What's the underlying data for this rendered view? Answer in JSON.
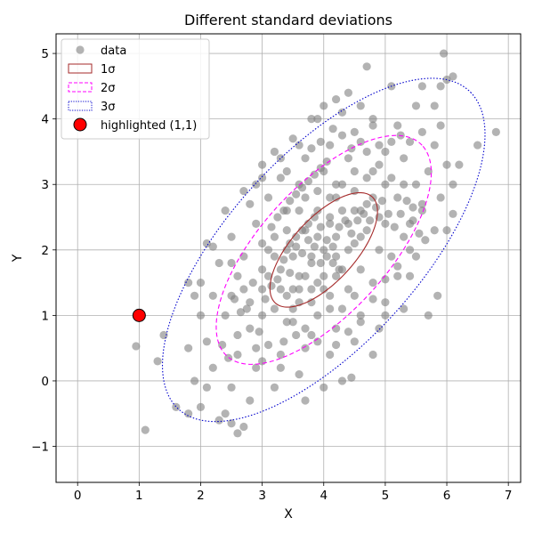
{
  "chart_data": {
    "type": "scatter",
    "title": "Different standard deviations",
    "xlabel": "X",
    "ylabel": "Y",
    "xlim": [
      -0.35,
      7.2
    ],
    "ylim": [
      -1.55,
      5.3
    ],
    "grid": true,
    "xticks": [
      "0",
      "1",
      "2",
      "3",
      "4",
      "5",
      "6",
      "7"
    ],
    "xtick_values": [
      0,
      1,
      2,
      3,
      4,
      5,
      6,
      7
    ],
    "yticks": [
      "−1",
      "0",
      "1",
      "2",
      "3",
      "4",
      "5"
    ],
    "ytick_values": [
      -1,
      0,
      1,
      2,
      3,
      4,
      5
    ],
    "legend_position": "top-left",
    "legend": [
      {
        "label": "data",
        "kind": "marker",
        "color": "#808080"
      },
      {
        "label": "1σ",
        "kind": "solid-rect",
        "color": "#a52a2a"
      },
      {
        "label": "2σ",
        "kind": "dashed-rect",
        "color": "#ff00ff"
      },
      {
        "label": "3σ",
        "kind": "dotted-rect",
        "color": "#0000cd"
      },
      {
        "label": "highlighted (1,1)",
        "kind": "highlight-marker",
        "color": "#ff0000"
      }
    ],
    "center": [
      4.0,
      2.0
    ],
    "angle_deg": 45,
    "semi_axes_1sigma": [
      1.13,
      0.5
    ],
    "ellipses": [
      {
        "label": "1σ",
        "n_std": 1,
        "color": "#a52a2a",
        "style": "solid"
      },
      {
        "label": "2σ",
        "n_std": 2,
        "color": "#ff00ff",
        "style": "dashed"
      },
      {
        "label": "3σ",
        "n_std": 3,
        "color": "#0000cd",
        "style": "dotted"
      }
    ],
    "highlight": {
      "label": "highlighted (1,1)",
      "x": 1,
      "y": 1,
      "color": "#ff0000"
    },
    "series": [
      {
        "name": "data",
        "color": "#808080",
        "points": [
          [
            3.2,
            1.1
          ],
          [
            3.4,
            1.3
          ],
          [
            3.0,
            1.4
          ],
          [
            3.6,
            1.6
          ],
          [
            3.8,
            1.8
          ],
          [
            4.0,
            2.0
          ],
          [
            4.2,
            2.2
          ],
          [
            4.4,
            2.4
          ],
          [
            4.6,
            2.6
          ],
          [
            4.8,
            2.8
          ],
          [
            3.5,
            1.9
          ],
          [
            3.9,
            1.5
          ],
          [
            4.1,
            2.5
          ],
          [
            4.5,
            2.1
          ],
          [
            3.7,
            2.3
          ],
          [
            4.3,
            1.7
          ],
          [
            3.3,
            1.7
          ],
          [
            4.7,
            2.3
          ],
          [
            3.6,
            2.6
          ],
          [
            4.4,
            1.4
          ],
          [
            3.1,
            2.0
          ],
          [
            4.9,
            2.0
          ],
          [
            3.9,
            2.9
          ],
          [
            4.1,
            1.1
          ],
          [
            3.4,
            2.3
          ],
          [
            4.6,
            1.7
          ],
          [
            3.8,
            1.2
          ],
          [
            4.2,
            2.8
          ],
          [
            3.5,
            1.4
          ],
          [
            4.5,
            2.6
          ],
          [
            2.8,
            1.2
          ],
          [
            3.0,
            1.7
          ],
          [
            3.2,
            2.2
          ],
          [
            3.4,
            2.6
          ],
          [
            3.6,
            3.0
          ],
          [
            4.0,
            3.2
          ],
          [
            4.4,
            3.4
          ],
          [
            4.8,
            3.2
          ],
          [
            5.0,
            3.0
          ],
          [
            5.2,
            2.8
          ],
          [
            4.6,
            0.9
          ],
          [
            4.2,
            0.8
          ],
          [
            3.8,
            0.7
          ],
          [
            3.4,
            0.9
          ],
          [
            3.0,
            1.0
          ],
          [
            2.8,
            0.8
          ],
          [
            5.0,
            1.2
          ],
          [
            5.2,
            1.6
          ],
          [
            5.4,
            2.0
          ],
          [
            5.0,
            2.4
          ],
          [
            2.6,
            1.6
          ],
          [
            2.7,
            1.9
          ],
          [
            2.9,
            2.4
          ],
          [
            3.1,
            2.8
          ],
          [
            3.3,
            3.1
          ],
          [
            3.7,
            3.4
          ],
          [
            4.1,
            3.6
          ],
          [
            4.5,
            3.8
          ],
          [
            4.9,
            3.6
          ],
          [
            5.3,
            3.4
          ],
          [
            5.5,
            3.0
          ],
          [
            5.6,
            2.6
          ],
          [
            5.7,
            3.2
          ],
          [
            5.8,
            3.6
          ],
          [
            5.6,
            3.8
          ],
          [
            5.2,
            3.9
          ],
          [
            4.8,
            4.0
          ],
          [
            4.3,
            4.1
          ],
          [
            3.9,
            4.0
          ],
          [
            3.5,
            3.7
          ],
          [
            3.8,
            1.9
          ],
          [
            4.0,
            1.6
          ],
          [
            4.2,
            1.9
          ],
          [
            3.6,
            1.2
          ],
          [
            4.4,
            2.0
          ],
          [
            3.9,
            2.2
          ],
          [
            4.1,
            2.4
          ],
          [
            4.3,
            2.6
          ],
          [
            3.7,
            1.6
          ],
          [
            4.5,
            2.9
          ],
          [
            3.3,
            1.4
          ],
          [
            3.1,
            1.6
          ],
          [
            4.7,
            2.7
          ],
          [
            4.9,
            2.5
          ],
          [
            3.5,
            1.1
          ],
          [
            4.8,
            1.5
          ],
          [
            4.6,
            2.2
          ],
          [
            3.2,
            1.9
          ],
          [
            3.0,
            2.1
          ],
          [
            4.2,
            3.0
          ],
          [
            2.5,
            1.3
          ],
          [
            2.4,
            1.0
          ],
          [
            2.6,
            0.7
          ],
          [
            2.9,
            0.5
          ],
          [
            3.3,
            0.4
          ],
          [
            3.7,
            0.5
          ],
          [
            4.1,
            0.4
          ],
          [
            4.5,
            0.6
          ],
          [
            4.9,
            0.8
          ],
          [
            5.3,
            1.1
          ],
          [
            2.3,
            1.8
          ],
          [
            2.5,
            2.2
          ],
          [
            2.8,
            2.7
          ],
          [
            3.0,
            3.1
          ],
          [
            3.3,
            3.4
          ],
          [
            5.8,
            2.3
          ],
          [
            5.9,
            2.8
          ],
          [
            6.0,
            3.3
          ],
          [
            5.9,
            3.9
          ],
          [
            5.5,
            4.2
          ],
          [
            2.0,
            1.0
          ],
          [
            2.1,
            0.6
          ],
          [
            2.2,
            0.2
          ],
          [
            2.5,
            -0.1
          ],
          [
            2.8,
            -0.3
          ],
          [
            1.8,
            0.5
          ],
          [
            1.9,
            0.0
          ],
          [
            2.0,
            -0.4
          ],
          [
            2.3,
            -0.6
          ],
          [
            2.6,
            -0.8
          ],
          [
            1.4,
            0.7
          ],
          [
            1.3,
            0.3
          ],
          [
            1.6,
            -0.4
          ],
          [
            1.8,
            -0.5
          ],
          [
            1.1,
            -0.75
          ],
          [
            0.95,
            0.53
          ],
          [
            2.1,
            -0.1
          ],
          [
            2.4,
            -0.5
          ],
          [
            2.7,
            -0.7
          ],
          [
            2.5,
            -0.65
          ],
          [
            3.7,
            -0.3
          ],
          [
            4.0,
            -0.1
          ],
          [
            4.3,
            0.0
          ],
          [
            4.45,
            0.05
          ],
          [
            3.6,
            0.1
          ],
          [
            3.2,
            -0.1
          ],
          [
            3.3,
            0.2
          ],
          [
            2.9,
            0.2
          ],
          [
            3.0,
            0.3
          ],
          [
            4.8,
            0.4
          ],
          [
            2.1,
            2.1
          ],
          [
            2.2,
            2.05
          ],
          [
            2.4,
            2.6
          ],
          [
            2.5,
            1.8
          ],
          [
            2.7,
            2.9
          ],
          [
            2.9,
            3.0
          ],
          [
            2.0,
            1.5
          ],
          [
            1.8,
            1.5
          ],
          [
            1.9,
            1.3
          ],
          [
            2.2,
            1.3
          ],
          [
            5.9,
            4.5
          ],
          [
            6.0,
            4.6
          ],
          [
            5.8,
            4.2
          ],
          [
            5.6,
            4.5
          ],
          [
            5.1,
            4.5
          ],
          [
            4.7,
            4.8
          ],
          [
            6.1,
            4.65
          ],
          [
            5.95,
            5.0
          ],
          [
            6.5,
            3.6
          ],
          [
            6.8,
            3.8
          ],
          [
            6.1,
            2.55
          ],
          [
            6.0,
            2.3
          ],
          [
            6.1,
            3.0
          ],
          [
            6.2,
            3.3
          ],
          [
            5.85,
            1.3
          ],
          [
            5.7,
            1.0
          ],
          [
            5.5,
            1.9
          ],
          [
            5.4,
            1.6
          ],
          [
            5.1,
            1.9
          ],
          [
            5.0,
            1.0
          ],
          [
            4.4,
            4.4
          ],
          [
            4.2,
            4.3
          ],
          [
            3.8,
            4.0
          ],
          [
            3.6,
            3.6
          ],
          [
            3.4,
            3.2
          ],
          [
            4.0,
            4.2
          ],
          [
            4.6,
            4.2
          ],
          [
            4.8,
            3.9
          ],
          [
            3.2,
            3.5
          ],
          [
            3.0,
            3.3
          ],
          [
            4.1,
            1.3
          ],
          [
            3.9,
            1.0
          ],
          [
            3.7,
            0.8
          ],
          [
            4.3,
            1.1
          ],
          [
            4.5,
            1.3
          ],
          [
            3.5,
            0.9
          ],
          [
            3.8,
            1.4
          ],
          [
            4.0,
            1.4
          ],
          [
            4.2,
            1.6
          ],
          [
            3.6,
            1.4
          ],
          [
            3.9,
            2.6
          ],
          [
            4.1,
            2.8
          ],
          [
            4.3,
            3.0
          ],
          [
            3.7,
            2.8
          ],
          [
            4.5,
            3.2
          ],
          [
            4.7,
            3.1
          ],
          [
            4.9,
            3.3
          ],
          [
            5.1,
            3.1
          ],
          [
            5.3,
            3.0
          ],
          [
            5.0,
            3.5
          ],
          [
            2.7,
            1.4
          ],
          [
            2.75,
            1.1
          ],
          [
            2.85,
            1.5
          ],
          [
            3.05,
            1.25
          ],
          [
            3.15,
            1.45
          ],
          [
            3.25,
            1.55
          ],
          [
            3.35,
            1.85
          ],
          [
            3.45,
            1.65
          ],
          [
            3.55,
            2.05
          ],
          [
            3.65,
            1.95
          ],
          [
            3.75,
            2.15
          ],
          [
            3.85,
            2.05
          ],
          [
            3.95,
            2.35
          ],
          [
            4.05,
            2.15
          ],
          [
            4.15,
            2.05
          ],
          [
            4.25,
            2.35
          ],
          [
            4.35,
            2.45
          ],
          [
            4.45,
            2.25
          ],
          [
            4.55,
            2.45
          ],
          [
            4.65,
            2.55
          ],
          [
            4.75,
            2.45
          ],
          [
            4.85,
            2.65
          ],
          [
            4.95,
            2.75
          ],
          [
            5.05,
            2.55
          ],
          [
            5.15,
            2.35
          ],
          [
            5.25,
            2.55
          ],
          [
            5.35,
            2.75
          ],
          [
            5.45,
            2.45
          ],
          [
            5.55,
            2.25
          ],
          [
            5.65,
            2.15
          ],
          [
            3.4,
            2.0
          ],
          [
            3.45,
            2.1
          ],
          [
            3.55,
            2.2
          ],
          [
            3.65,
            2.3
          ],
          [
            3.75,
            2.4
          ],
          [
            3.85,
            2.5
          ],
          [
            3.95,
            1.8
          ],
          [
            4.05,
            1.9
          ],
          [
            4.15,
            1.8
          ],
          [
            4.25,
            1.7
          ],
          [
            3.15,
            2.35
          ],
          [
            3.25,
            2.5
          ],
          [
            3.35,
            2.6
          ],
          [
            3.45,
            2.75
          ],
          [
            3.55,
            2.85
          ],
          [
            3.65,
            2.95
          ],
          [
            3.75,
            3.05
          ],
          [
            3.85,
            3.15
          ],
          [
            3.95,
            3.25
          ],
          [
            4.05,
            3.35
          ],
          [
            4.2,
            0.55
          ],
          [
            4.4,
            0.75
          ],
          [
            4.6,
            1.0
          ],
          [
            4.8,
            1.25
          ],
          [
            5.0,
            1.55
          ],
          [
            5.2,
            1.75
          ],
          [
            5.3,
            2.2
          ],
          [
            5.4,
            2.4
          ],
          [
            5.45,
            2.65
          ],
          [
            5.6,
            2.7
          ],
          [
            2.95,
            0.75
          ],
          [
            3.1,
            0.55
          ],
          [
            3.35,
            0.6
          ],
          [
            3.55,
            0.7
          ],
          [
            3.9,
            0.6
          ],
          [
            2.6,
            0.4
          ],
          [
            2.45,
            0.35
          ],
          [
            2.35,
            0.55
          ],
          [
            2.65,
            1.05
          ],
          [
            2.55,
            1.25
          ],
          [
            4.7,
            3.5
          ],
          [
            4.6,
            3.65
          ],
          [
            4.45,
            3.55
          ],
          [
            4.3,
            3.75
          ],
          [
            4.15,
            3.85
          ],
          [
            3.95,
            3.65
          ],
          [
            3.8,
            3.55
          ],
          [
            5.4,
            3.65
          ],
          [
            5.25,
            3.75
          ],
          [
            5.1,
            3.65
          ]
        ]
      }
    ]
  }
}
